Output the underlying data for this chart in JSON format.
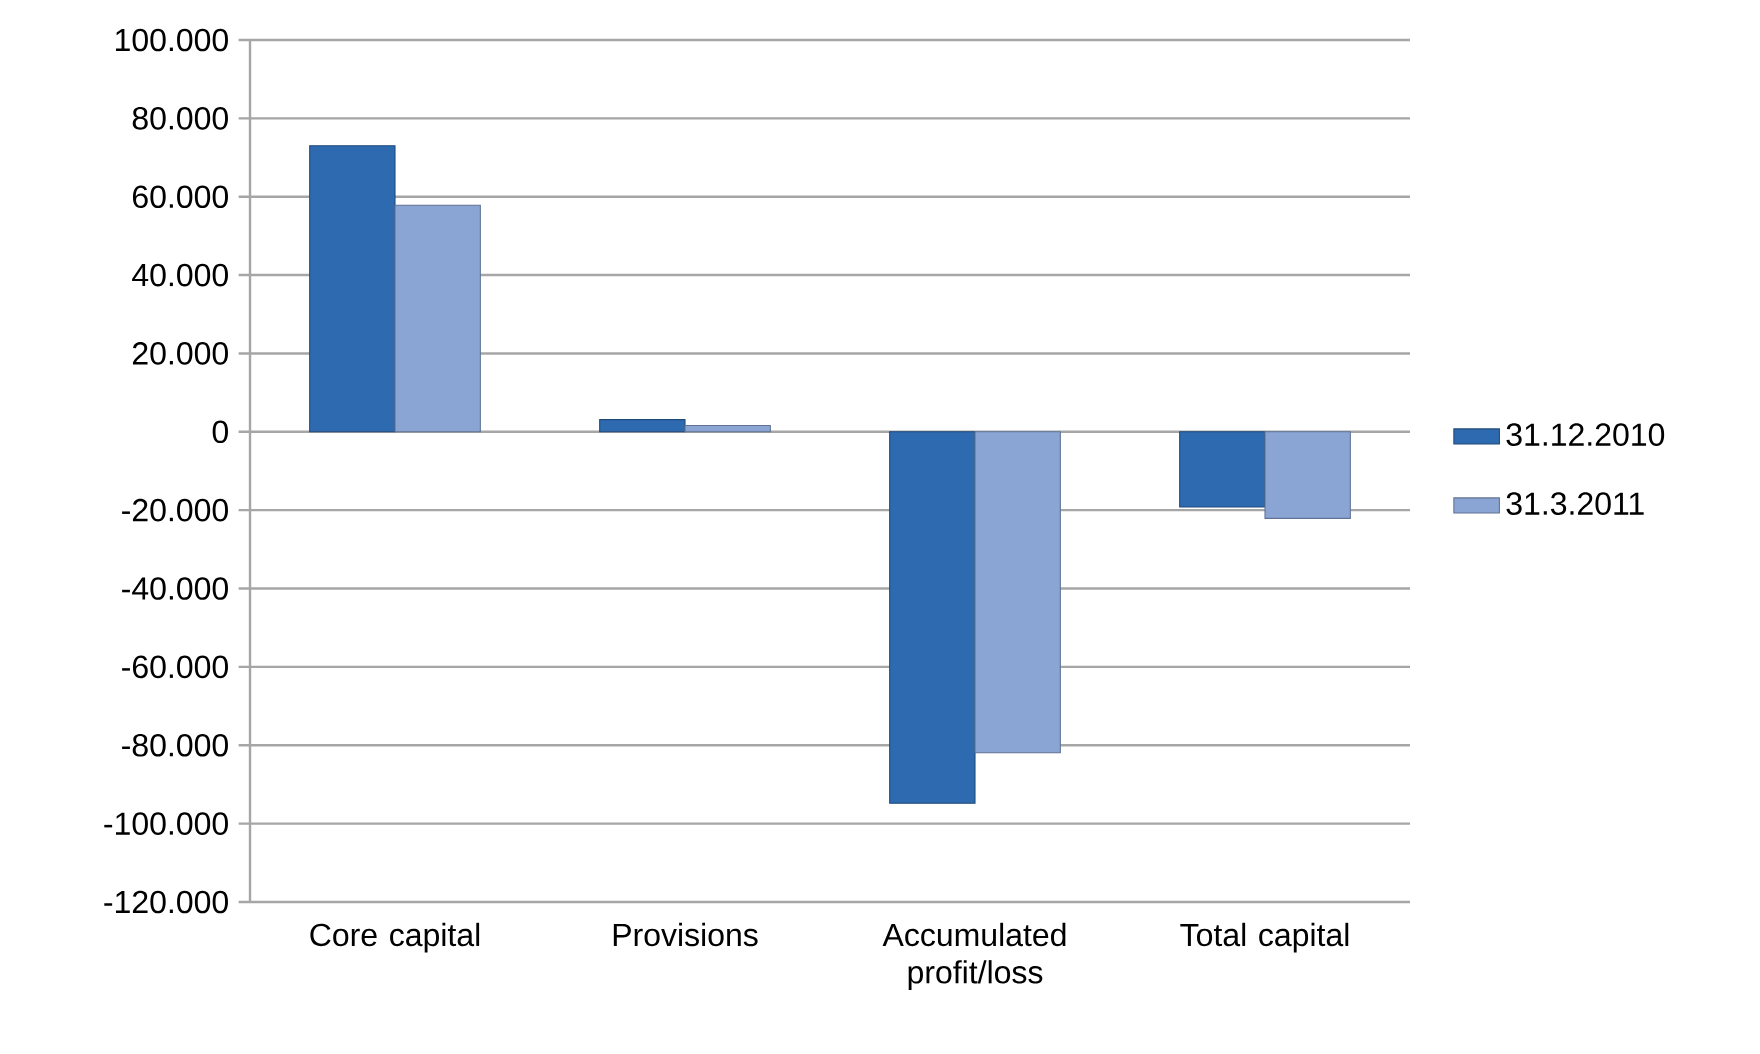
{
  "chart_data": {
    "type": "bar",
    "categories": [
      "Core capital",
      "Provisions",
      "Accumulated profit/loss",
      "Total capital"
    ],
    "series": [
      {
        "name": "31.12.2010",
        "color": "#2e6ab0",
        "values": [
          73000,
          3100,
          -94800,
          -19200
        ]
      },
      {
        "name": "31.3.2011",
        "color": "#8aa4d4",
        "values": [
          57800,
          1600,
          -81900,
          -22100
        ]
      }
    ],
    "ylim": [
      -120000,
      100000
    ],
    "yticks": [
      {
        "value": -120000,
        "label": "-120.000"
      },
      {
        "value": -100000,
        "label": "-100.000"
      },
      {
        "value": -80000,
        "label": "-80.000"
      },
      {
        "value": -60000,
        "label": "-60.000"
      },
      {
        "value": -40000,
        "label": "-40.000"
      },
      {
        "value": -20000,
        "label": "-20.000"
      },
      {
        "value": 0,
        "label": "0"
      },
      {
        "value": 20000,
        "label": "20.000"
      },
      {
        "value": 40000,
        "label": "40.000"
      },
      {
        "value": 60000,
        "label": "60.000"
      },
      {
        "value": 80000,
        "label": "80.000"
      },
      {
        "value": 100000,
        "label": "100.000"
      }
    ],
    "grid": "y",
    "legend": "right"
  }
}
